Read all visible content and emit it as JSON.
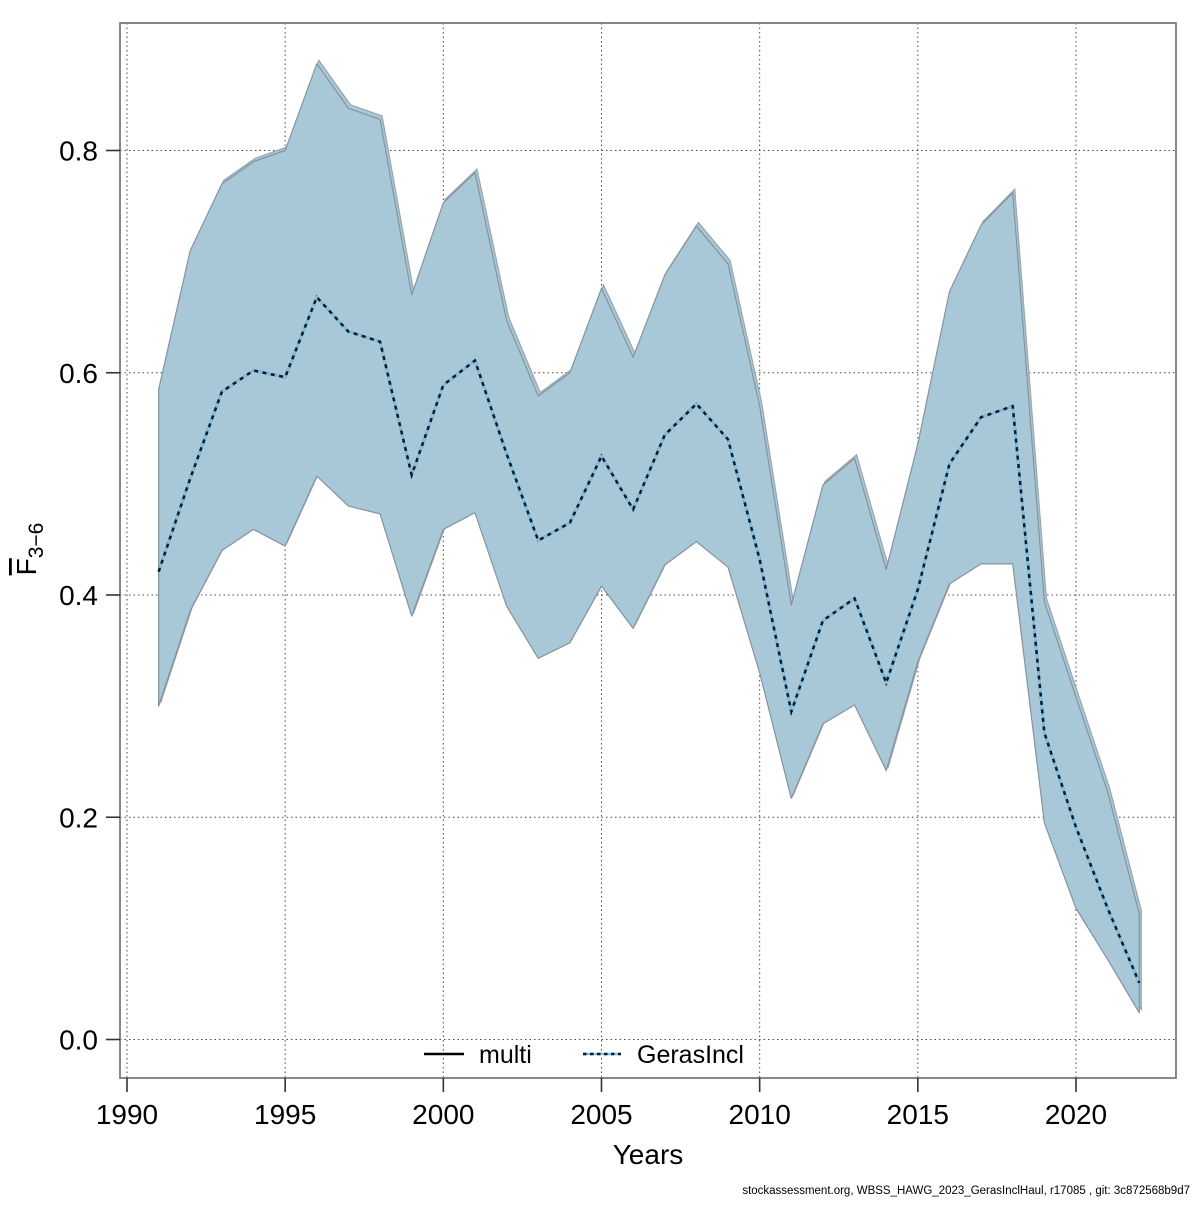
{
  "footer": {
    "credit": "stockassessment.org, WBSS_HAWG_2023_GerasInclHaul, r17085 , git: 3c872568b9d7"
  },
  "colors": {
    "band_fill": "#a9c8d7",
    "band_edge": "#85939d",
    "band_edge_echo": "#97a5ae",
    "grid": "#4a4a4a",
    "frame": "#7a7a7a",
    "multi_line": "#000000",
    "gerasincl_light": "#7cc3e8",
    "gerasincl_dark": "#0d1b2a",
    "tick": "#333333"
  },
  "chart_data": {
    "type": "line",
    "title": "",
    "xlabel": "Years",
    "ylabel": {
      "base": "F",
      "overline": true,
      "subscript": "3−6"
    },
    "x_ticks": [
      1990,
      1995,
      2000,
      2005,
      2010,
      2015,
      2020
    ],
    "y_ticks": [
      "0.0",
      "0.2",
      "0.4",
      "0.6",
      "0.8"
    ],
    "y_tick_values": [
      0.0,
      0.2,
      0.4,
      0.6,
      0.8
    ],
    "xlim": [
      1989.8,
      2023.2
    ],
    "ylim": [
      -0.035,
      0.915
    ],
    "grid": true,
    "legend_position": "bottom-center",
    "x": [
      1991,
      1992,
      1993,
      1994,
      1995,
      1996,
      1997,
      1998,
      1999,
      2000,
      2001,
      2002,
      2003,
      2004,
      2005,
      2006,
      2007,
      2008,
      2009,
      2010,
      2011,
      2012,
      2013,
      2014,
      2015,
      2016,
      2017,
      2018,
      2019,
      2020,
      2021,
      2022
    ],
    "series": [
      {
        "name": "multi",
        "style": "solid",
        "color": "#000000",
        "values": [
          0.421,
          0.505,
          0.583,
          0.602,
          0.596,
          0.668,
          0.637,
          0.628,
          0.508,
          0.589,
          0.611,
          0.527,
          0.449,
          0.465,
          0.525,
          0.477,
          0.544,
          0.572,
          0.54,
          0.432,
          0.295,
          0.377,
          0.397,
          0.321,
          0.405,
          0.518,
          0.56,
          0.57,
          0.276,
          0.191,
          0.118,
          0.051
        ]
      },
      {
        "name": "GerasIncl",
        "style": "dotted",
        "color": "#2a7fb5",
        "values": [
          0.421,
          0.505,
          0.583,
          0.602,
          0.596,
          0.668,
          0.637,
          0.628,
          0.508,
          0.589,
          0.611,
          0.527,
          0.449,
          0.465,
          0.525,
          0.477,
          0.544,
          0.572,
          0.54,
          0.432,
          0.295,
          0.377,
          0.397,
          0.321,
          0.405,
          0.518,
          0.56,
          0.57,
          0.276,
          0.191,
          0.118,
          0.051
        ],
        "ci_upper": [
          0.585,
          0.71,
          0.77,
          0.79,
          0.8,
          0.878,
          0.838,
          0.828,
          0.67,
          0.753,
          0.78,
          0.647,
          0.579,
          0.6,
          0.676,
          0.614,
          0.688,
          0.732,
          0.698,
          0.57,
          0.391,
          0.499,
          0.523,
          0.423,
          0.536,
          0.673,
          0.733,
          0.762,
          0.394,
          0.308,
          0.223,
          0.113
        ],
        "ci_lower": [
          0.3,
          0.386,
          0.44,
          0.459,
          0.444,
          0.507,
          0.48,
          0.473,
          0.381,
          0.459,
          0.474,
          0.39,
          0.343,
          0.357,
          0.408,
          0.37,
          0.427,
          0.448,
          0.425,
          0.33,
          0.217,
          0.284,
          0.301,
          0.242,
          0.34,
          0.41,
          0.428,
          0.428,
          0.195,
          0.118,
          0.072,
          0.024
        ]
      }
    ]
  }
}
